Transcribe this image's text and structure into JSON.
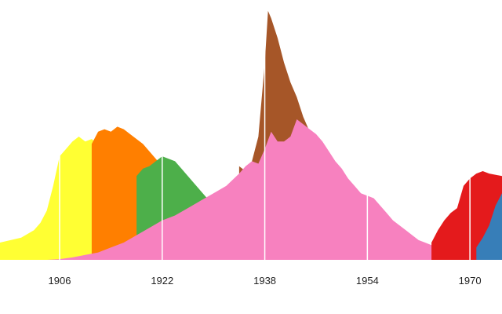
{
  "chart_data": {
    "type": "area",
    "title": "",
    "xlabel": "",
    "ylabel": "",
    "xlim": [
      1896.7,
      1975
    ],
    "ylim": [
      0,
      100
    ],
    "grid": "vertical lines at labeled ticks",
    "x_ticks": [
      "1906",
      "1922",
      "1938",
      "1954",
      "1970"
    ],
    "series": [
      {
        "color": "#ffff33",
        "points": [
          [
            1896.7,
            7
          ],
          [
            1900,
            9
          ],
          [
            1902,
            12
          ],
          [
            1903,
            15
          ],
          [
            1904,
            20
          ],
          [
            1905,
            30
          ],
          [
            1906,
            42
          ],
          [
            1907,
            45
          ],
          [
            1908,
            48
          ],
          [
            1909,
            50
          ],
          [
            1910,
            48
          ],
          [
            1911,
            49
          ],
          [
            1912,
            47
          ],
          [
            1913,
            45
          ],
          [
            1914,
            43
          ],
          [
            1915,
            40
          ],
          [
            1916,
            37
          ],
          [
            1917,
            34
          ],
          [
            1918,
            31
          ],
          [
            1919,
            28
          ],
          [
            1920,
            24
          ],
          [
            1921,
            21
          ],
          [
            1922,
            18
          ]
        ]
      },
      {
        "color": "#ff7f00",
        "points": [
          [
            1911,
            47
          ],
          [
            1912,
            52
          ],
          [
            1913,
            53
          ],
          [
            1914,
            52
          ],
          [
            1915,
            54
          ],
          [
            1916,
            53
          ],
          [
            1917,
            51
          ],
          [
            1918,
            49
          ],
          [
            1919,
            47
          ],
          [
            1920,
            44
          ],
          [
            1921,
            41
          ],
          [
            1922,
            38
          ],
          [
            1923,
            35
          ],
          [
            1924,
            31
          ],
          [
            1925,
            27
          ],
          [
            1926,
            22
          ],
          [
            1927,
            19
          ]
        ]
      },
      {
        "color": "#4daf4a",
        "points": [
          [
            1918,
            34
          ],
          [
            1919,
            37
          ],
          [
            1920,
            38
          ],
          [
            1921,
            40
          ],
          [
            1922,
            42
          ],
          [
            1923,
            41
          ],
          [
            1924,
            40
          ],
          [
            1925,
            37
          ],
          [
            1926,
            34
          ],
          [
            1927,
            31
          ],
          [
            1928,
            28
          ],
          [
            1929,
            25
          ],
          [
            1930,
            23
          ]
        ]
      },
      {
        "color": "#a65628",
        "points": [
          [
            1934,
            38
          ],
          [
            1935,
            36
          ],
          [
            1936,
            40
          ],
          [
            1937,
            50
          ],
          [
            1938,
            80
          ],
          [
            1938.5,
            101
          ],
          [
            1939,
            98
          ],
          [
            1940,
            90
          ],
          [
            1941,
            80
          ],
          [
            1942,
            72
          ],
          [
            1943,
            66
          ],
          [
            1944,
            58
          ],
          [
            1945,
            52
          ],
          [
            1946,
            47
          ],
          [
            1947,
            43
          ],
          [
            1948,
            38
          ],
          [
            1949,
            35
          ],
          [
            1950,
            31
          ],
          [
            1951,
            27
          ],
          [
            1952,
            24
          ],
          [
            1953,
            22
          ],
          [
            1954,
            20
          ]
        ]
      },
      {
        "color": "#f781bf",
        "points": [
          [
            1896.7,
            0
          ],
          [
            1904,
            0
          ],
          [
            1906,
            0.3
          ],
          [
            1908,
            1
          ],
          [
            1910,
            2
          ],
          [
            1912,
            3
          ],
          [
            1914,
            5
          ],
          [
            1916,
            7
          ],
          [
            1918,
            10
          ],
          [
            1920,
            13
          ],
          [
            1922,
            16
          ],
          [
            1924,
            18
          ],
          [
            1926,
            21
          ],
          [
            1928,
            24
          ],
          [
            1930,
            27
          ],
          [
            1932,
            30
          ],
          [
            1934,
            35
          ],
          [
            1935,
            38
          ],
          [
            1936,
            40
          ],
          [
            1937,
            39
          ],
          [
            1938,
            45
          ],
          [
            1939,
            52
          ],
          [
            1940,
            48
          ],
          [
            1941,
            48
          ],
          [
            1942,
            50
          ],
          [
            1943,
            57
          ],
          [
            1944,
            55
          ],
          [
            1945,
            53
          ],
          [
            1946,
            51
          ],
          [
            1947,
            48
          ],
          [
            1948,
            44
          ],
          [
            1949,
            40
          ],
          [
            1950,
            37
          ],
          [
            1951,
            33
          ],
          [
            1952,
            30
          ],
          [
            1953,
            27
          ],
          [
            1954,
            26
          ],
          [
            1955,
            25
          ],
          [
            1956,
            22
          ],
          [
            1957,
            19
          ],
          [
            1958,
            16
          ],
          [
            1959,
            14
          ],
          [
            1960,
            12
          ],
          [
            1961,
            10
          ],
          [
            1962,
            8
          ],
          [
            1963,
            7
          ],
          [
            1964,
            6
          ],
          [
            1966,
            6
          ],
          [
            1968,
            5
          ],
          [
            1970,
            6
          ],
          [
            1972,
            6
          ],
          [
            1975,
            5
          ]
        ]
      },
      {
        "color": "#e41a1c",
        "points": [
          [
            1964,
            7
          ],
          [
            1965,
            12
          ],
          [
            1966,
            16
          ],
          [
            1967,
            19
          ],
          [
            1968,
            21
          ],
          [
            1969,
            30
          ],
          [
            1970,
            33
          ],
          [
            1971,
            35
          ],
          [
            1972,
            36
          ],
          [
            1973,
            35
          ],
          [
            1975,
            34
          ]
        ]
      },
      {
        "color": "#377eb8",
        "points": [
          [
            1971,
            5
          ],
          [
            1972,
            9
          ],
          [
            1973,
            14
          ],
          [
            1974,
            22
          ],
          [
            1975,
            27
          ]
        ]
      }
    ]
  }
}
